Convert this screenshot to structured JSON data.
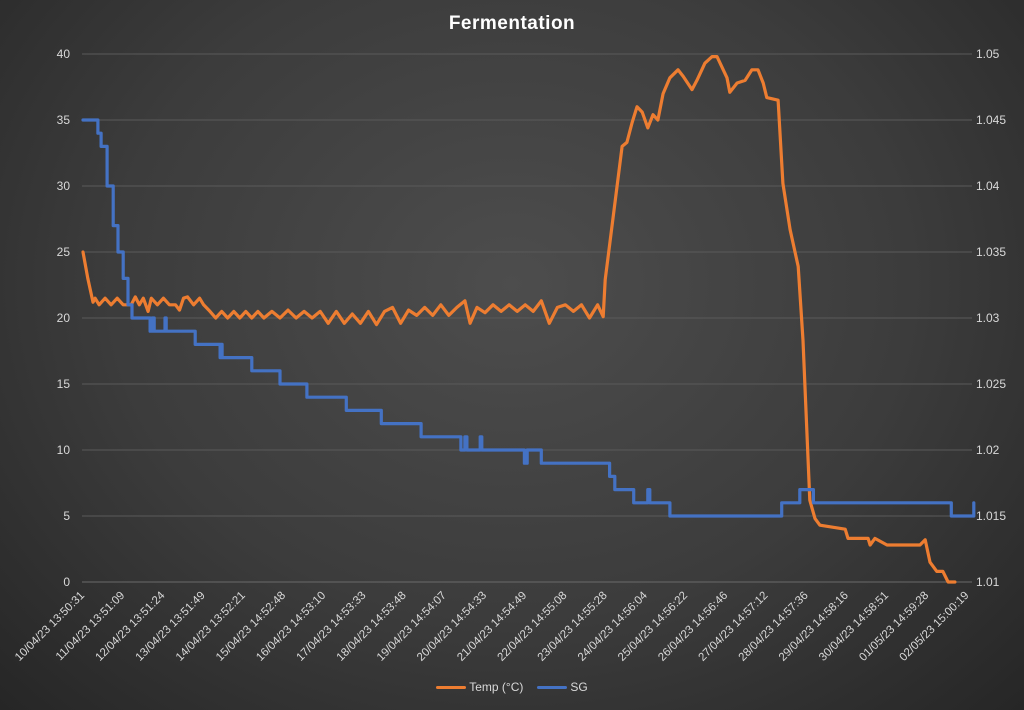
{
  "chart_data": {
    "type": "line",
    "title": "Fermentation",
    "xlabel": "",
    "ylabel_left": "",
    "ylabel_right": "",
    "ylim_left": [
      0,
      40
    ],
    "ylim_right": [
      1.01,
      1.05
    ],
    "yticks_left": [
      "0",
      "5",
      "10",
      "15",
      "20",
      "25",
      "30",
      "35",
      "40"
    ],
    "yticks_right": [
      "1.01",
      "1.015",
      "1.02",
      "1.025",
      "1.03",
      "1.035",
      "1.04",
      "1.045",
      "1.05"
    ],
    "grid": true,
    "legend_position": "bottom",
    "x_unit": "days since first sample",
    "categories": [
      "10/04/23 13:50:31",
      "11/04/23 13:51:09",
      "12/04/23 13:51:24",
      "13/04/23 13:51:49",
      "14/04/23 13:52:21",
      "15/04/23 14:52:48",
      "16/04/23 14:53:10",
      "17/04/23 14:53:33",
      "18/04/23 14:53:48",
      "19/04/23 14:54:07",
      "20/04/23 14:54:33",
      "21/04/23 14:54:49",
      "22/04/23 14:55:08",
      "23/04/23 14:55:28",
      "24/04/23 14:56:04",
      "25/04/23 14:56:22",
      "26/04/23 14:56:46",
      "27/04/23 14:57:12",
      "28/04/23 14:57:36",
      "29/04/23 14:58:16",
      "30/04/23 14:58:51",
      "01/05/23 14:59:28",
      "02/05/23 15:00:19"
    ],
    "series": [
      {
        "name": "Temp (°C)",
        "axis": "left",
        "color": "#ED7D31",
        "points": [
          [
            0,
            25
          ],
          [
            0.12,
            23
          ],
          [
            0.25,
            21.2
          ],
          [
            0.3,
            21.5
          ],
          [
            0.4,
            21
          ],
          [
            0.55,
            21.5
          ],
          [
            0.7,
            21
          ],
          [
            0.85,
            21.5
          ],
          [
            1.0,
            21
          ],
          [
            1.2,
            21
          ],
          [
            1.3,
            21.6
          ],
          [
            1.4,
            21
          ],
          [
            1.5,
            21.5
          ],
          [
            1.62,
            20.5
          ],
          [
            1.7,
            21.5
          ],
          [
            1.85,
            21
          ],
          [
            2.0,
            21.5
          ],
          [
            2.15,
            21
          ],
          [
            2.3,
            21
          ],
          [
            2.4,
            20.6
          ],
          [
            2.5,
            21.5
          ],
          [
            2.6,
            21.6
          ],
          [
            2.75,
            21
          ],
          [
            2.9,
            21.5
          ],
          [
            3.0,
            21
          ],
          [
            3.16,
            20.5
          ],
          [
            3.3,
            20
          ],
          [
            3.45,
            20.5
          ],
          [
            3.6,
            20
          ],
          [
            3.75,
            20.5
          ],
          [
            3.9,
            20
          ],
          [
            4.05,
            20.5
          ],
          [
            4.2,
            20
          ],
          [
            4.35,
            20.5
          ],
          [
            4.5,
            20
          ],
          [
            4.7,
            20.5
          ],
          [
            4.9,
            20
          ],
          [
            5.1,
            20.6
          ],
          [
            5.3,
            20
          ],
          [
            5.5,
            20.5
          ],
          [
            5.7,
            20
          ],
          [
            5.9,
            20.5
          ],
          [
            6.1,
            19.6
          ],
          [
            6.3,
            20.5
          ],
          [
            6.5,
            19.6
          ],
          [
            6.7,
            20.3
          ],
          [
            6.9,
            19.6
          ],
          [
            7.1,
            20.5
          ],
          [
            7.3,
            19.5
          ],
          [
            7.5,
            20.5
          ],
          [
            7.7,
            20.8
          ],
          [
            7.9,
            19.6
          ],
          [
            8.1,
            20.6
          ],
          [
            8.3,
            20.2
          ],
          [
            8.5,
            20.8
          ],
          [
            8.7,
            20.2
          ],
          [
            8.9,
            21
          ],
          [
            9.1,
            20.2
          ],
          [
            9.3,
            20.8
          ],
          [
            9.5,
            21.3
          ],
          [
            9.63,
            19.6
          ],
          [
            9.8,
            20.8
          ],
          [
            10.0,
            20.4
          ],
          [
            10.2,
            21
          ],
          [
            10.4,
            20.5
          ],
          [
            10.6,
            21
          ],
          [
            10.8,
            20.5
          ],
          [
            11.0,
            21
          ],
          [
            11.2,
            20.5
          ],
          [
            11.4,
            21.3
          ],
          [
            11.6,
            19.6
          ],
          [
            11.8,
            20.8
          ],
          [
            12.0,
            21
          ],
          [
            12.2,
            20.5
          ],
          [
            12.4,
            21
          ],
          [
            12.6,
            20
          ],
          [
            12.8,
            21
          ],
          [
            12.94,
            20.1
          ],
          [
            12.99,
            22.9
          ],
          [
            13.41,
            33
          ],
          [
            13.53,
            33.3
          ],
          [
            13.66,
            34.8
          ],
          [
            13.78,
            36
          ],
          [
            13.91,
            35.6
          ],
          [
            14.05,
            34.4
          ],
          [
            14.18,
            35.4
          ],
          [
            14.3,
            35
          ],
          [
            14.43,
            37
          ],
          [
            14.6,
            38.2
          ],
          [
            14.8,
            38.8
          ],
          [
            14.93,
            38.3
          ],
          [
            15.15,
            37.3
          ],
          [
            15.27,
            38
          ],
          [
            15.47,
            39.3
          ],
          [
            15.65,
            39.8
          ],
          [
            15.77,
            39.8
          ],
          [
            16.02,
            38.2
          ],
          [
            16.09,
            37.1
          ],
          [
            16.27,
            37.8
          ],
          [
            16.47,
            38
          ],
          [
            16.64,
            38.8
          ],
          [
            16.79,
            38.8
          ],
          [
            16.92,
            37.8
          ],
          [
            17.01,
            36.7
          ],
          [
            17.29,
            36.5
          ],
          [
            17.41,
            30.2
          ],
          [
            17.59,
            26.7
          ],
          [
            17.79,
            23.9
          ],
          [
            17.91,
            18.3
          ],
          [
            18.08,
            6.2
          ],
          [
            18.21,
            4.8
          ],
          [
            18.33,
            4.3
          ],
          [
            18.96,
            4
          ],
          [
            19.03,
            3.3
          ],
          [
            19.53,
            3.3
          ],
          [
            19.58,
            2.8
          ],
          [
            19.7,
            3.3
          ],
          [
            20.0,
            2.8
          ],
          [
            20.82,
            2.8
          ],
          [
            20.95,
            3.2
          ],
          [
            21.07,
            1.5
          ],
          [
            21.24,
            0.8
          ],
          [
            21.39,
            0.8
          ],
          [
            21.52,
            0
          ],
          [
            21.69,
            0
          ]
        ]
      },
      {
        "name": "SG",
        "axis": "right",
        "color": "#4472C4",
        "points": [
          [
            0,
            1.045
          ],
          [
            0.3,
            1.045
          ],
          [
            0.37,
            1.044
          ],
          [
            0.45,
            1.043
          ],
          [
            0.6,
            1.04
          ],
          [
            0.75,
            1.037
          ],
          [
            0.87,
            1.035
          ],
          [
            1.0,
            1.033
          ],
          [
            1.12,
            1.031
          ],
          [
            1.22,
            1.03
          ],
          [
            1.62,
            1.03
          ],
          [
            1.67,
            1.029
          ],
          [
            1.72,
            1.03
          ],
          [
            1.77,
            1.029
          ],
          [
            2.02,
            1.029
          ],
          [
            2.04,
            1.03
          ],
          [
            2.07,
            1.029
          ],
          [
            2.71,
            1.029
          ],
          [
            2.79,
            1.028
          ],
          [
            3.38,
            1.028
          ],
          [
            3.41,
            1.027
          ],
          [
            3.43,
            1.028
          ],
          [
            3.46,
            1.027
          ],
          [
            4.15,
            1.027
          ],
          [
            4.2,
            1.026
          ],
          [
            4.85,
            1.026
          ],
          [
            4.9,
            1.025
          ],
          [
            5.52,
            1.025
          ],
          [
            5.57,
            1.024
          ],
          [
            6.52,
            1.024
          ],
          [
            6.55,
            1.023
          ],
          [
            7.39,
            1.023
          ],
          [
            7.42,
            1.022
          ],
          [
            8.38,
            1.022
          ],
          [
            8.41,
            1.021
          ],
          [
            9.38,
            1.021
          ],
          [
            9.4,
            1.02
          ],
          [
            9.5,
            1.021
          ],
          [
            9.55,
            1.02
          ],
          [
            9.85,
            1.02
          ],
          [
            9.88,
            1.021
          ],
          [
            9.92,
            1.02
          ],
          [
            10.95,
            1.02
          ],
          [
            10.98,
            1.019
          ],
          [
            11.05,
            1.02
          ],
          [
            11.37,
            1.02
          ],
          [
            11.4,
            1.019
          ],
          [
            13.06,
            1.019
          ],
          [
            13.1,
            1.018
          ],
          [
            13.23,
            1.017
          ],
          [
            13.66,
            1.017
          ],
          [
            13.7,
            1.016
          ],
          [
            14.0,
            1.016
          ],
          [
            14.05,
            1.017
          ],
          [
            14.1,
            1.016
          ],
          [
            14.55,
            1.016
          ],
          [
            14.6,
            1.015
          ],
          [
            17.34,
            1.015
          ],
          [
            17.38,
            1.016
          ],
          [
            17.79,
            1.016
          ],
          [
            17.83,
            1.017
          ],
          [
            18.13,
            1.017
          ],
          [
            18.17,
            1.016
          ],
          [
            21.57,
            1.016
          ],
          [
            21.6,
            1.015
          ],
          [
            22.06,
            1.015
          ],
          [
            22.16,
            1.016
          ]
        ]
      }
    ]
  }
}
